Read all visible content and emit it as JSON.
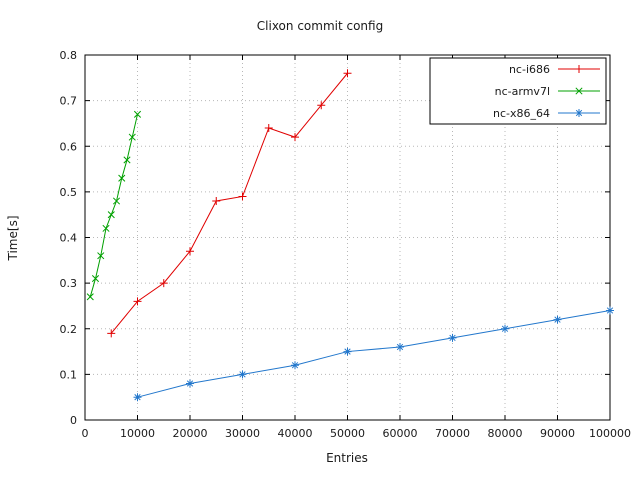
{
  "chart_data": {
    "type": "line",
    "title": "Clixon commit config",
    "xlabel": "Entries",
    "ylabel": "Time[s]",
    "xlim": [
      0,
      100000
    ],
    "ylim": [
      0,
      0.8
    ],
    "xticks": [
      0,
      10000,
      20000,
      30000,
      40000,
      50000,
      60000,
      70000,
      80000,
      90000,
      100000
    ],
    "yticks": [
      0,
      0.1,
      0.2,
      0.3,
      0.4,
      0.5,
      0.6,
      0.7,
      0.8
    ],
    "grid": true,
    "legend_position": "top-right",
    "plot_border_color": "#000000",
    "grid_color": "#b8b8b8",
    "series": [
      {
        "name": "nc-i686",
        "color": "#e00000",
        "marker": "plus",
        "x": [
          5000,
          10000,
          15000,
          20000,
          25000,
          30000,
          35000,
          40000,
          45000,
          50000
        ],
        "y": [
          0.19,
          0.26,
          0.3,
          0.37,
          0.48,
          0.49,
          0.64,
          0.62,
          0.69,
          0.76
        ]
      },
      {
        "name": "nc-armv7l",
        "color": "#00a000",
        "marker": "cross",
        "x": [
          1000,
          2000,
          3000,
          4000,
          5000,
          6000,
          7000,
          8000,
          9000,
          10000
        ],
        "y": [
          0.27,
          0.31,
          0.36,
          0.42,
          0.45,
          0.48,
          0.53,
          0.57,
          0.62,
          0.67
        ]
      },
      {
        "name": "nc-x86_64",
        "color": "#2277cc",
        "marker": "asterisk",
        "x": [
          10000,
          20000,
          30000,
          40000,
          50000,
          60000,
          70000,
          80000,
          90000,
          100000
        ],
        "y": [
          0.05,
          0.08,
          0.1,
          0.12,
          0.15,
          0.16,
          0.18,
          0.2,
          0.22,
          0.24
        ]
      }
    ]
  }
}
